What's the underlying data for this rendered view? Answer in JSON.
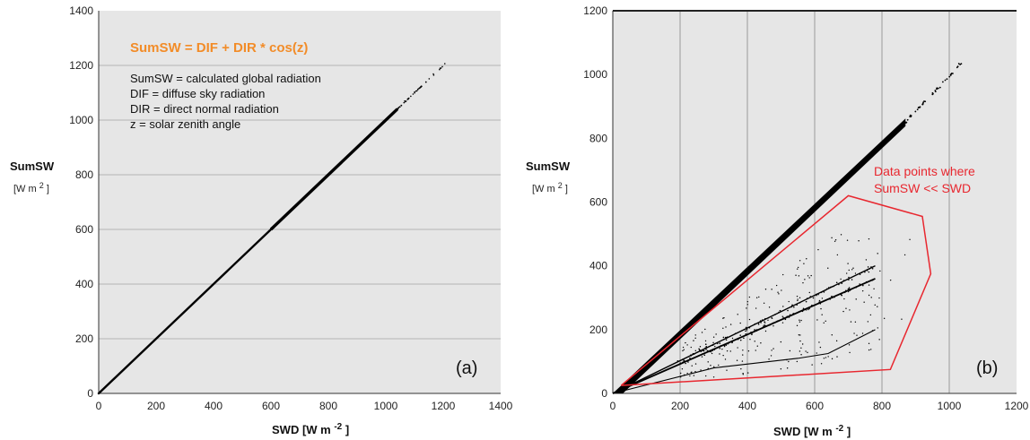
{
  "chart_data": [
    {
      "type": "scatter",
      "panel_label": "(a)",
      "xlabel": "SWD [W m",
      "xlabel_sup": "-2",
      "xlabel_close": "]",
      "ylabel": "SumSW",
      "ylabel_unit": "[W m",
      "ylabel_unit_sup": "2",
      "ylabel_unit_close": "]",
      "xlim": [
        0,
        1400
      ],
      "ylim": [
        0,
        1400
      ],
      "xticks": [
        0,
        200,
        400,
        600,
        800,
        1000,
        1200,
        1400
      ],
      "yticks": [
        0,
        200,
        400,
        600,
        800,
        1000,
        1200,
        1400
      ],
      "grid": "horizontal",
      "formula": "SumSW = DIF + DIR * cos(z)",
      "legend_lines": [
        "SumSW = calculated global radiation",
        "DIF = diffuse sky radiation",
        "DIR = direct normal radiation",
        "z = solar zenith angle"
      ],
      "series": [
        {
          "description": "1:1 dense band",
          "x": [
            0,
            1040
          ],
          "y": [
            0,
            1040
          ]
        },
        {
          "description": "sparse tail",
          "x": [
            1040,
            1210
          ],
          "y": [
            1040,
            1210
          ]
        }
      ]
    },
    {
      "type": "scatter",
      "panel_label": "(b)",
      "xlabel": "SWD [W m",
      "xlabel_sup": "-2",
      "xlabel_close": "]",
      "ylabel": "SumSW",
      "ylabel_unit": "[W m",
      "ylabel_unit_sup": "2",
      "ylabel_unit_close": "]",
      "xlim": [
        0,
        1200
      ],
      "ylim": [
        0,
        1200
      ],
      "xticks": [
        0,
        200,
        400,
        600,
        800,
        1000,
        1200
      ],
      "yticks": [
        0,
        200,
        400,
        600,
        800,
        1000,
        1200
      ],
      "grid": "vertical",
      "annotation": [
        "Data points where",
        "SumSW << SWD"
      ],
      "annotation_color": "#e8272f",
      "polygon_color": "#e8272f",
      "polygon": [
        [
          25,
          25
        ],
        [
          700,
          620
        ],
        [
          920,
          555
        ],
        [
          945,
          375
        ],
        [
          825,
          75
        ],
        [
          25,
          25
        ]
      ],
      "series": [
        {
          "description": "main dense band",
          "x": [
            0,
            870
          ],
          "y": [
            0,
            850
          ]
        },
        {
          "description": "sparse upper tail",
          "x": [
            870,
            1040
          ],
          "y": [
            850,
            1040
          ]
        },
        {
          "description": "band to ~400",
          "x": [
            0,
            780
          ],
          "y": [
            0,
            400
          ]
        },
        {
          "description": "band to ~360",
          "x": [
            0,
            780
          ],
          "y": [
            0,
            360
          ]
        },
        {
          "description": "lower curve",
          "x": [
            0,
            300,
            550,
            640,
            780
          ],
          "y": [
            0,
            80,
            110,
            125,
            200
          ]
        },
        {
          "description": "scattered points",
          "x": [
            200,
            900
          ],
          "y": [
            50,
            500
          ]
        }
      ]
    }
  ]
}
